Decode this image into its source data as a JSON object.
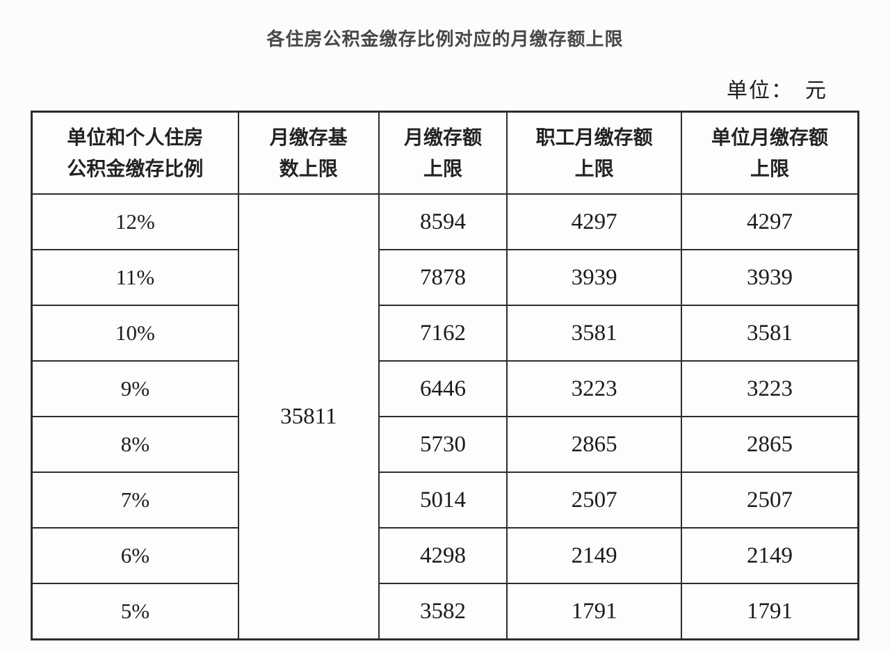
{
  "page": {
    "title": "各住房公积金缴存比例对应的月缴存额上限",
    "unit_label": "单位：　元"
  },
  "table": {
    "headers": [
      "单位和个人住房\n公积金缴存比例",
      "月缴存基\n数上限",
      "月缴存额\n上限",
      "职工月缴存额\n上限",
      "单位月缴存额\n上限"
    ],
    "base_limit": "35811",
    "rows": [
      {
        "ratio": "12%",
        "monthly_cap": "8594",
        "employee_cap": "4297",
        "employer_cap": "4297"
      },
      {
        "ratio": "11%",
        "monthly_cap": "7878",
        "employee_cap": "3939",
        "employer_cap": "3939"
      },
      {
        "ratio": "10%",
        "monthly_cap": "7162",
        "employee_cap": "3581",
        "employer_cap": "3581"
      },
      {
        "ratio": "9%",
        "monthly_cap": "6446",
        "employee_cap": "3223",
        "employer_cap": "3223"
      },
      {
        "ratio": "8%",
        "monthly_cap": "5730",
        "employee_cap": "2865",
        "employer_cap": "2865"
      },
      {
        "ratio": "7%",
        "monthly_cap": "5014",
        "employee_cap": "2507",
        "employer_cap": "2507"
      },
      {
        "ratio": "6%",
        "monthly_cap": "4298",
        "employee_cap": "2149",
        "employer_cap": "2149"
      },
      {
        "ratio": "5%",
        "monthly_cap": "3582",
        "employee_cap": "1791",
        "employer_cap": "1791"
      }
    ]
  }
}
